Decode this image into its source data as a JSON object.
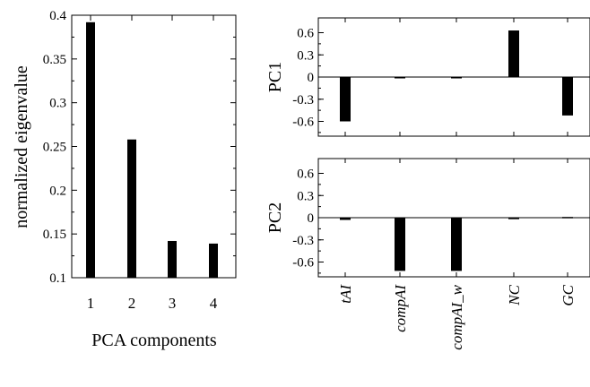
{
  "chart_data": [
    {
      "type": "bar",
      "categories": [
        "1",
        "2",
        "3",
        "4"
      ],
      "values": [
        0.392,
        0.258,
        0.142,
        0.139
      ],
      "title": "",
      "xlabel": "PCA components",
      "ylabel": "normalized eigenvalue",
      "ylim": [
        0.1,
        0.4
      ],
      "yticks": [
        "0.1",
        "0.15",
        "0.2",
        "0.25",
        "0.3",
        "0.35",
        "0.4"
      ],
      "bar_color": "#000000"
    },
    {
      "type": "bar",
      "categories": [
        "tAI",
        "compAI",
        "compAI_w",
        "NC",
        "GC"
      ],
      "values": [
        -0.6,
        0.0,
        0.0,
        0.63,
        -0.52
      ],
      "title": "",
      "xlabel": "",
      "ylabel": "PC1",
      "ylim": [
        -0.8,
        0.8
      ],
      "yticks": [
        "-0.6",
        "-0.3",
        "0",
        "0.3",
        "0.6"
      ],
      "bar_color": "#000000"
    },
    {
      "type": "bar",
      "categories": [
        "tAI",
        "compAI",
        "compAI_w",
        "NC",
        "GC"
      ],
      "values": [
        -0.03,
        -0.72,
        -0.72,
        -0.02,
        0.01
      ],
      "title": "",
      "xlabel": "",
      "ylabel": "PC2",
      "ylim": [
        -0.8,
        0.8
      ],
      "yticks": [
        "-0.6",
        "-0.3",
        "0",
        "0.3",
        "0.6"
      ],
      "bar_color": "#000000"
    }
  ]
}
